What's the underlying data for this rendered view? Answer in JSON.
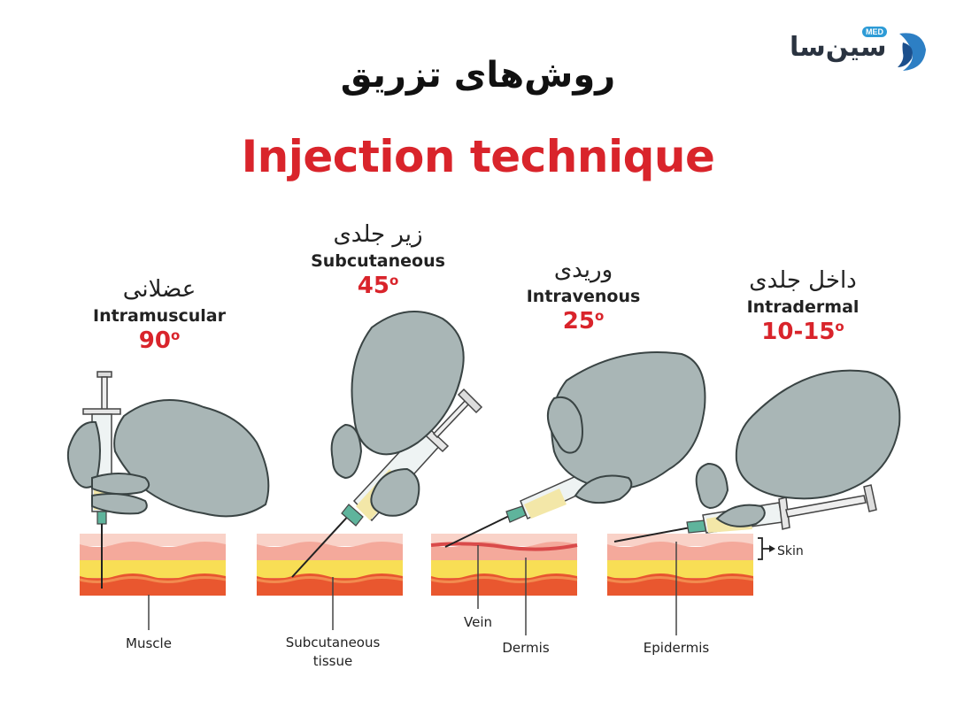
{
  "brand": {
    "name": "سین‌سا",
    "badge": "MED"
  },
  "title_fa": "روش‌های تزریق",
  "title_en": "Injection technique",
  "techniques": [
    {
      "fa": "عضلانی",
      "en": "Intramuscular",
      "angle": "90",
      "deg": "o"
    },
    {
      "fa": "زیر جلدی",
      "en": "Subcutaneous",
      "angle": "45",
      "deg": "o"
    },
    {
      "fa": "وریدی",
      "en": "Intravenous",
      "angle": "25",
      "deg": "o"
    },
    {
      "fa": "داخل جلدی",
      "en": "Intradermal",
      "angle": "10-15",
      "deg": "o"
    }
  ],
  "annotations": {
    "muscle": "Muscle",
    "subcutaneous_line1": "Subcutaneous",
    "subcutaneous_line2": "tissue",
    "vein": "Vein",
    "dermis": "Dermis",
    "epidermis": "Epidermis",
    "skin": "Skin"
  },
  "colors": {
    "accent": "#d9242b",
    "glove": "#a9b6b6",
    "skin_top": "#f6c1b6",
    "fat": "#f7dc4d",
    "muscle": "#e8552f"
  }
}
